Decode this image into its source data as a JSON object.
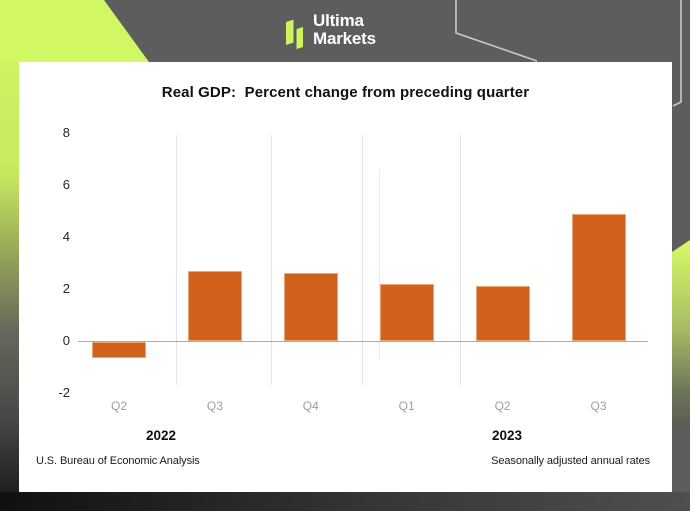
{
  "header": {
    "brand_line1": "Ultima",
    "brand_line2": "Markets",
    "background_color": "#5d5d5d",
    "accent_color": "#d2f765"
  },
  "chart_data": {
    "type": "bar",
    "title": "Real GDP:  Percent change from preceding quarter",
    "categories": [
      "Q2",
      "Q3",
      "Q4",
      "Q1",
      "Q2",
      "Q3"
    ],
    "values": [
      -0.6,
      2.7,
      2.6,
      2.2,
      2.1,
      4.9
    ],
    "year_groups": [
      {
        "label": "2022",
        "quarters": [
          "Q2",
          "Q3",
          "Q4"
        ]
      },
      {
        "label": "2023",
        "quarters": [
          "Q1",
          "Q2",
          "Q3"
        ]
      }
    ],
    "y_ticks": [
      8,
      6,
      4,
      2,
      0,
      -2
    ],
    "ylim": [
      -2,
      8
    ],
    "xlabel": "",
    "ylabel": "",
    "grid": "vertical-separators-only",
    "legend": "none",
    "bar_color": "#d2611b"
  },
  "footer": {
    "left": "U.S. Bureau of Economic Analysis",
    "right": "Seasonally adjusted annual rates"
  }
}
